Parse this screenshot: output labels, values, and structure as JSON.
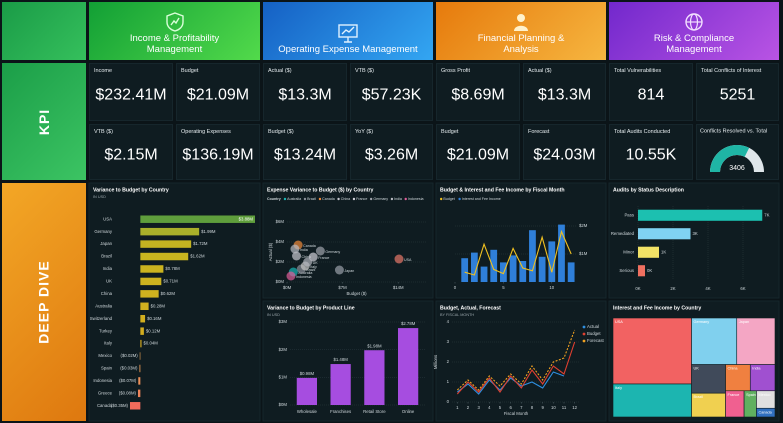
{
  "header": {
    "tiles": [
      "Income & Profitability Management",
      "Operating Expense Management",
      "Financial Planning & Analysis",
      "Risk & Compliance Management"
    ],
    "sections": [
      "KPI",
      "DEEP DIVE"
    ]
  },
  "kpis": [
    {
      "label": "Income",
      "value": "$232.41M"
    },
    {
      "label": "Budget",
      "value": "$21.09M"
    },
    {
      "label": "Actual ($)",
      "value": "$13.3M"
    },
    {
      "label": "VTB ($)",
      "value": "$57.23K"
    },
    {
      "label": "Gross Profit",
      "value": "$8.69M"
    },
    {
      "label": "Actual ($)",
      "value": "$13.3M"
    },
    {
      "label": "Total Vulnerabilities",
      "value": "814"
    },
    {
      "label": "Total Conflicts of Interest",
      "value": "5251"
    },
    {
      "label": "VTB ($)",
      "value": "$2.15M"
    },
    {
      "label": "Operating Expenses",
      "value": "$136.19M"
    },
    {
      "label": "Budget ($)",
      "value": "$13.24M"
    },
    {
      "label": "YoY ($)",
      "value": "$3.26M"
    },
    {
      "label": "Budget",
      "value": "$21.09M"
    },
    {
      "label": "Forecast",
      "value": "$24.03M"
    },
    {
      "label": "Total Audits Conducted",
      "value": "10.55K"
    }
  ],
  "chart_data": [
    {
      "type": "bar",
      "orientation": "horizontal",
      "title": "Variance to Budget by Country",
      "subtitle": "IN USD",
      "categories": [
        "USA",
        "Germany",
        "Japan",
        "Brazil",
        "India",
        "UK",
        "China",
        "Australia",
        "Switzerland",
        "Turkey",
        "Italy",
        "Mexico",
        "Spain",
        "Indonesia",
        "Greece",
        "Canada"
      ],
      "values": [
        3.88,
        1.99,
        1.72,
        1.62,
        0.78,
        0.71,
        0.62,
        0.28,
        0.16,
        0.12,
        0.04,
        -0.02,
        -0.03,
        -0.07,
        -0.08,
        -0.35
      ],
      "value_labels": [
        "$3.88M",
        "$1.99M",
        "$1.72M",
        "$1.62M",
        "$0.78M",
        "$0.71M",
        "$0.62M",
        "$0.28M",
        "$0.16M",
        "$0.12M",
        "$0.04M",
        "($0.02M)",
        "($0.03M)",
        "($0.07M)",
        "($0.08M)",
        "($0.35M)"
      ],
      "colors": [
        "#5f9e3c",
        "#a9b02a",
        "#c3b321",
        "#c9b51f",
        "#cbb41f",
        "#cdb31f",
        "#cfb21f",
        "#d0b01f",
        "#d1ae1f",
        "#d2ac1f",
        "#d3aa1f",
        "#e9a050",
        "#ea9a55",
        "#ec8f58",
        "#ee845a",
        "#f26b5b"
      ]
    },
    {
      "type": "scatter",
      "title": "Expense Variance to Budget ($) by Country",
      "legend_title": "Country",
      "x_label": "Budget ($)",
      "y_label": "Actual ($)",
      "xlim": [
        0,
        17.5
      ],
      "xticks": [
        {
          "value": 0,
          "label": "$0M"
        },
        {
          "value": 7,
          "label": "$7M"
        },
        {
          "value": 14,
          "label": "$14M"
        }
      ],
      "ylim": [
        0,
        6
      ],
      "yticks": [
        {
          "value": 0,
          "label": "$0M"
        },
        {
          "value": 2,
          "label": "$2M"
        },
        {
          "value": 4,
          "label": "$4M"
        },
        {
          "value": 6,
          "label": "$6M"
        }
      ],
      "series": [
        {
          "name": "Australia",
          "color": "#1ab6b6",
          "x": [
            0.8
          ],
          "values": [
            1.0
          ]
        },
        {
          "name": "Brazil",
          "color": "#8a8f99",
          "x": [
            1.8
          ],
          "values": [
            1.3
          ]
        },
        {
          "name": "Canada",
          "color": "#f08a3a",
          "x": [
            1.4
          ],
          "values": [
            3.7
          ]
        },
        {
          "name": "China",
          "color": "#c8c8d0",
          "x": [
            1.2
          ],
          "values": [
            2.6
          ]
        },
        {
          "name": "France",
          "color": "#d0d0d8",
          "x": [
            3.3
          ],
          "values": [
            2.5
          ]
        },
        {
          "name": "Germany",
          "color": "#a0a4ac",
          "x": [
            4.2
          ],
          "values": [
            3.1
          ]
        },
        {
          "name": "India",
          "color": "#b9bcc4",
          "x": [
            1.0
          ],
          "values": [
            3.3
          ]
        },
        {
          "name": "Indonesia",
          "color": "#e05e9a",
          "x": [
            0.5
          ],
          "values": [
            0.6
          ]
        },
        {
          "name": "Italy",
          "color": "#c4c4c4",
          "x": [
            2.3
          ],
          "values": [
            1.6
          ]
        },
        {
          "name": "Japan",
          "color": "#9aa0aa",
          "x": [
            6.6
          ],
          "values": [
            1.2
          ]
        },
        {
          "name": "UK",
          "color": "#b0b4bc",
          "x": [
            2.6
          ],
          "values": [
            2.0
          ]
        },
        {
          "name": "USA",
          "color": "#e8786a",
          "x": [
            14.1
          ],
          "values": [
            2.3
          ]
        }
      ]
    },
    {
      "type": "bar",
      "title": "Variance to Budget by Product Line",
      "subtitle": "IN USD",
      "categories": [
        "Wholesale",
        "Franchises",
        "Retail Store",
        "Online"
      ],
      "values": [
        0.98,
        1.48,
        1.98,
        2.78
      ],
      "value_labels": [
        "$0.98M",
        "$1.48M",
        "$1.98M",
        "$2.78M"
      ],
      "color": "#a64de0",
      "ylim": [
        0,
        3
      ],
      "yticks": [
        {
          "value": 0,
          "label": "$0M"
        },
        {
          "value": 1,
          "label": "$1M"
        },
        {
          "value": 2,
          "label": "$2M"
        },
        {
          "value": 3,
          "label": "$3M"
        }
      ]
    },
    {
      "type": "combo",
      "title": "Budget & Interest and Fee Income by Fiscal Month",
      "x": [
        1,
        2,
        3,
        4,
        5,
        6,
        7,
        8,
        9,
        10,
        11,
        12
      ],
      "xlim": [
        0,
        12.5
      ],
      "xticks": [
        0,
        5,
        10
      ],
      "ylim": [
        0,
        2.5
      ],
      "yticks": [
        {
          "value": 1,
          "label": "$1M"
        },
        {
          "value": 2,
          "label": "$2M"
        }
      ],
      "series": [
        {
          "name": "Budget",
          "color": "#f0c020",
          "kind": "line",
          "values": [
            0.35,
            0.25,
            1.35,
            0.45,
            0.3,
            1.2,
            0.5,
            0.4,
            1.6,
            0.35,
            1.8,
            1.0
          ]
        },
        {
          "name": "Interest and Fee Income",
          "color": "#2f7fd9",
          "kind": "bar",
          "values": [
            0.85,
            1.05,
            0.55,
            1.15,
            0.7,
            0.95,
            0.75,
            1.85,
            0.9,
            1.45,
            2.05,
            0.7
          ]
        }
      ]
    },
    {
      "type": "line",
      "title": "Budget, Actual, Forecast",
      "subtitle": "BY FISCAL MONTH",
      "x_label": "Fiscal Month",
      "y_label": "Millions",
      "x": [
        1,
        2,
        3,
        4,
        5,
        6,
        7,
        8,
        9,
        10,
        11,
        12
      ],
      "xlim": [
        0.5,
        12.5
      ],
      "xticks": [
        1,
        2,
        3,
        4,
        5,
        6,
        7,
        8,
        9,
        10,
        11,
        12
      ],
      "ylim": [
        0,
        4
      ],
      "yticks": [
        0,
        1,
        2,
        3,
        4
      ],
      "series": [
        {
          "name": "Actual",
          "color": "#2f8fe0",
          "values": [
            0.5,
            0.9,
            0.4,
            1.1,
            0.6,
            1.2,
            0.8,
            1.0,
            0.7,
            1.5,
            1.3,
            null
          ]
        },
        {
          "name": "Budget",
          "color": "#e04030",
          "values": [
            0.4,
            1.0,
            0.5,
            1.2,
            0.5,
            1.3,
            0.7,
            1.6,
            0.9,
            1.8,
            1.4,
            3.0
          ]
        },
        {
          "name": "Forecast",
          "color": "#f0a020",
          "dashed": true,
          "values": [
            0.6,
            1.1,
            0.6,
            1.3,
            0.8,
            1.4,
            0.9,
            1.8,
            1.1,
            2.0,
            2.2,
            3.6
          ]
        }
      ]
    },
    {
      "type": "bar",
      "orientation": "horizontal",
      "title": "Audits by Status Description",
      "categories": [
        "Pass",
        "Remediated",
        "Minor",
        "Serious"
      ],
      "values": [
        7.1,
        3.0,
        1.2,
        0.4
      ],
      "value_labels": [
        "7K",
        "3K",
        "1K",
        "0K"
      ],
      "colors": [
        "#1cc0b0",
        "#80d2f2",
        "#f2e266",
        "#f07060"
      ],
      "xlim": [
        0,
        8
      ],
      "xticks": [
        {
          "value": 0,
          "label": "0K"
        },
        {
          "value": 2,
          "label": "2K"
        },
        {
          "value": 4,
          "label": "4K"
        },
        {
          "value": 6,
          "label": "6K"
        }
      ]
    },
    {
      "type": "treemap",
      "title": "Interest and Fee Income by Country",
      "categories": [
        "USA",
        "Italy",
        "Germany",
        "Japan",
        "UK",
        "Brazil",
        "China",
        "India",
        "France",
        "Spain",
        "Mexico",
        "Canada"
      ],
      "values": [
        32,
        16,
        13,
        11,
        6,
        5,
        4,
        4,
        3,
        2,
        2,
        1
      ],
      "colors": [
        "#f26262",
        "#1cb5b0",
        "#80d0ee",
        "#f4a6c4",
        "#404a5a",
        "#f0d050",
        "#f08040",
        "#a050d0",
        "#f06090",
        "#60b060",
        "#e0e0e0",
        "#3070c0"
      ]
    },
    {
      "type": "gauge",
      "title": "Conflicts Resolved vs. Total",
      "value": 3406,
      "max": 5251,
      "color": "#1fb5a5",
      "track_color": "#dfe6ea"
    }
  ]
}
